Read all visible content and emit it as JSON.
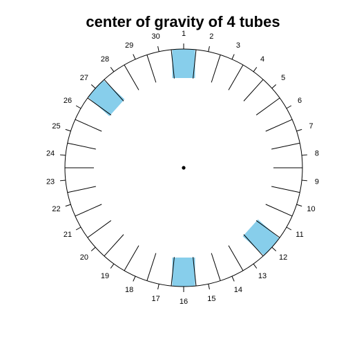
{
  "title": "center of gravity of 4 tubes",
  "rotor": {
    "slot_count": 30,
    "slot_labels": [
      "1",
      "2",
      "3",
      "4",
      "5",
      "6",
      "7",
      "8",
      "9",
      "10",
      "11",
      "12",
      "13",
      "14",
      "15",
      "16",
      "17",
      "18",
      "19",
      "20",
      "21",
      "22",
      "23",
      "24",
      "25",
      "26",
      "27",
      "28",
      "29",
      "30"
    ],
    "filled_slots": [
      1,
      12,
      16,
      27
    ],
    "fill_color": "#87CEEB",
    "line_color": "#000000",
    "center_of_gravity_marker": "dot"
  }
}
